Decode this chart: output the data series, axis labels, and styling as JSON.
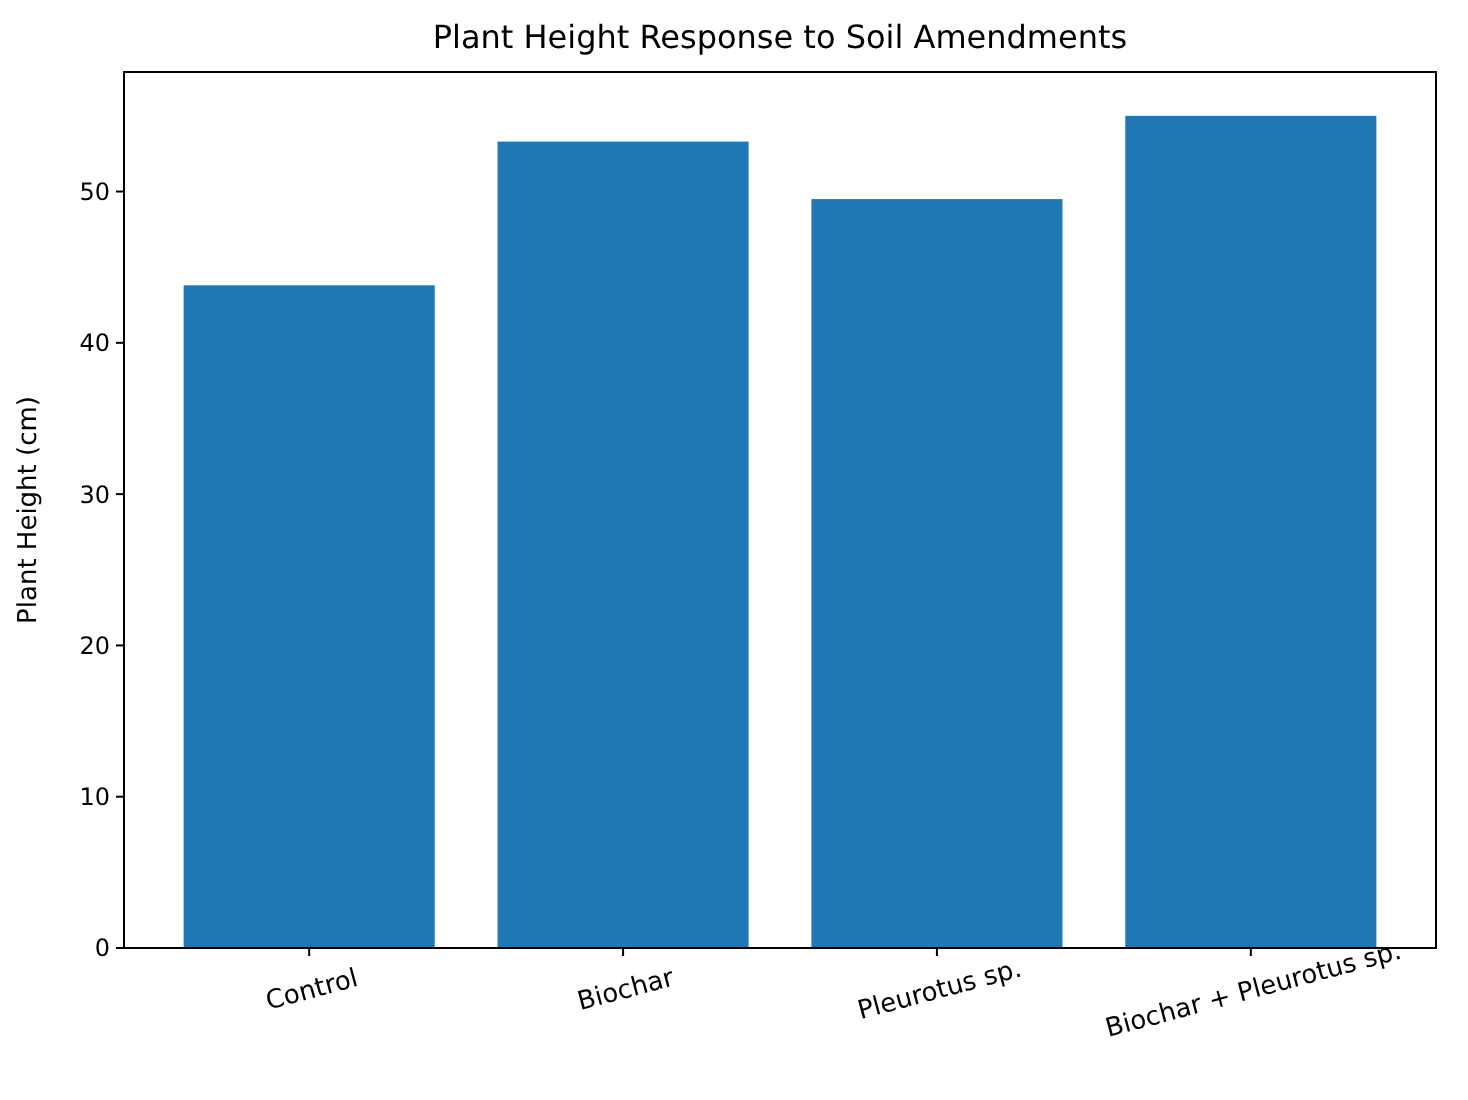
{
  "chart_data": {
    "type": "bar",
    "title": "Plant Height Response to Soil Amendments",
    "ylabel": "Plant Height (cm)",
    "categories": [
      "Control",
      "Biochar",
      "Pleurotus sp.",
      "Biochar + Pleurotus sp."
    ],
    "values": [
      43.8,
      53.3,
      49.5,
      55.0
    ],
    "color": "#1f77b4",
    "ylim": [
      0,
      57.9
    ],
    "yticks": [
      0,
      10,
      20,
      30,
      40,
      50
    ],
    "grid": false
  }
}
